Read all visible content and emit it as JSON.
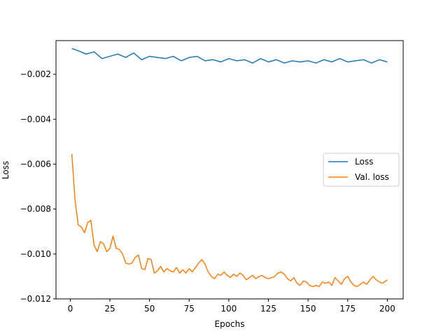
{
  "chart_data": {
    "type": "line",
    "title": "",
    "xlabel": "Epochs",
    "ylabel": "Loss",
    "xlim": [
      -9,
      210
    ],
    "ylim": [
      -0.012,
      -0.0005
    ],
    "xticks": [
      0,
      25,
      50,
      75,
      100,
      125,
      150,
      175,
      200
    ],
    "xtick_labels": [
      "0",
      "25",
      "50",
      "75",
      "100",
      "125",
      "150",
      "175",
      "200"
    ],
    "yticks": [
      -0.002,
      -0.004,
      -0.006,
      -0.008,
      -0.01,
      -0.012
    ],
    "ytick_labels": [
      "−0.002",
      "−0.004",
      "−0.006",
      "−0.008",
      "−0.010",
      "−0.012"
    ],
    "grid": false,
    "legend_position": "center-right",
    "series": [
      {
        "name": "Loss",
        "color": "#1f77b4",
        "x": [
          1,
          5,
          10,
          15,
          20,
          25,
          30,
          35,
          40,
          45,
          50,
          55,
          60,
          65,
          70,
          75,
          80,
          85,
          90,
          95,
          100,
          105,
          110,
          115,
          120,
          125,
          130,
          135,
          140,
          145,
          150,
          155,
          160,
          165,
          170,
          175,
          180,
          185,
          190,
          195,
          200
        ],
        "y": [
          -0.00085,
          -0.00095,
          -0.0011,
          -0.001,
          -0.0013,
          -0.0012,
          -0.0011,
          -0.00125,
          -0.00105,
          -0.00135,
          -0.0012,
          -0.00125,
          -0.0013,
          -0.0012,
          -0.0014,
          -0.00125,
          -0.0012,
          -0.0014,
          -0.00135,
          -0.00145,
          -0.0013,
          -0.0014,
          -0.00135,
          -0.0015,
          -0.0013,
          -0.00145,
          -0.00135,
          -0.0015,
          -0.0014,
          -0.00145,
          -0.0014,
          -0.0015,
          -0.00135,
          -0.00145,
          -0.0013,
          -0.00145,
          -0.0014,
          -0.00135,
          -0.0015,
          -0.00135,
          -0.00145
        ]
      },
      {
        "name": "Val. loss",
        "color": "#ff7f0e",
        "x": [
          1,
          3,
          5,
          7,
          9,
          11,
          13,
          15,
          17,
          19,
          21,
          23,
          25,
          27,
          29,
          31,
          33,
          35,
          37,
          39,
          41,
          43,
          45,
          47,
          49,
          51,
          53,
          55,
          57,
          59,
          61,
          63,
          65,
          67,
          69,
          71,
          73,
          75,
          77,
          79,
          81,
          83,
          85,
          87,
          89,
          91,
          93,
          95,
          97,
          99,
          101,
          103,
          105,
          107,
          109,
          111,
          113,
          115,
          117,
          119,
          121,
          123,
          125,
          127,
          129,
          131,
          133,
          135,
          137,
          139,
          141,
          143,
          145,
          147,
          149,
          151,
          153,
          155,
          157,
          159,
          161,
          163,
          165,
          167,
          169,
          171,
          173,
          175,
          177,
          179,
          181,
          183,
          185,
          187,
          189,
          191,
          193,
          195,
          197,
          199,
          200
        ],
        "y": [
          -0.00555,
          -0.0076,
          -0.0087,
          -0.0088,
          -0.00905,
          -0.0086,
          -0.0085,
          -0.0096,
          -0.0099,
          -0.00945,
          -0.00955,
          -0.0099,
          -0.00975,
          -0.0092,
          -0.00975,
          -0.0098,
          -0.01,
          -0.0104,
          -0.01045,
          -0.0104,
          -0.01015,
          -0.01005,
          -0.01065,
          -0.0107,
          -0.0102,
          -0.01025,
          -0.01085,
          -0.01075,
          -0.01055,
          -0.0108,
          -0.01065,
          -0.01075,
          -0.0108,
          -0.0106,
          -0.01085,
          -0.0107,
          -0.01085,
          -0.01065,
          -0.0108,
          -0.0106,
          -0.0104,
          -0.01025,
          -0.01045,
          -0.0108,
          -0.011,
          -0.0111,
          -0.0109,
          -0.01095,
          -0.0108,
          -0.01095,
          -0.01105,
          -0.0109,
          -0.011,
          -0.01085,
          -0.01095,
          -0.01115,
          -0.01105,
          -0.01095,
          -0.0111,
          -0.011,
          -0.01095,
          -0.01105,
          -0.0111,
          -0.01105,
          -0.011,
          -0.01085,
          -0.0108,
          -0.0109,
          -0.0111,
          -0.0112,
          -0.01105,
          -0.0113,
          -0.0114,
          -0.0112,
          -0.01125,
          -0.0114,
          -0.01145,
          -0.0114,
          -0.01145,
          -0.01125,
          -0.0113,
          -0.01125,
          -0.0114,
          -0.01105,
          -0.0112,
          -0.01135,
          -0.0111,
          -0.011,
          -0.01125,
          -0.0114,
          -0.01145,
          -0.01135,
          -0.01125,
          -0.01135,
          -0.01115,
          -0.011,
          -0.01115,
          -0.01125,
          -0.0113,
          -0.0112,
          -0.01115
        ]
      }
    ]
  }
}
